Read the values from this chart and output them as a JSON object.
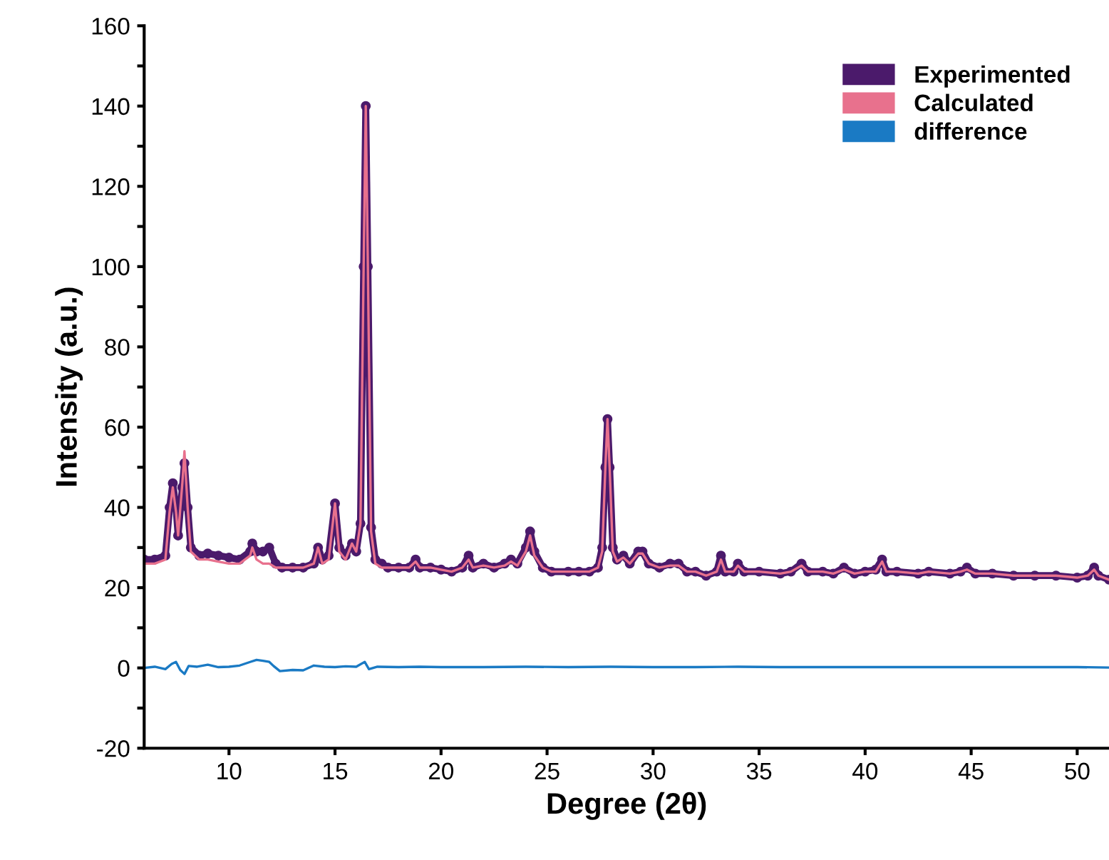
{
  "chart_data": {
    "type": "line",
    "xlabel": "Degree (2θ)",
    "ylabel": "Intensity (a.u.)",
    "xlim": [
      6,
      51.5
    ],
    "xticks": [
      10,
      15,
      20,
      25,
      30,
      35,
      40,
      45,
      50
    ],
    "ylim": [
      -20,
      160
    ],
    "yticks": [
      -20,
      {
        "value": -10,
        "label": null
      },
      0,
      {
        "value": 10,
        "label": null
      },
      20,
      {
        "value": 30,
        "label": null
      },
      40,
      {
        "value": 50,
        "label": null
      },
      60,
      {
        "value": 70,
        "label": null
      },
      80,
      {
        "value": 90,
        "label": null
      },
      100,
      {
        "value": 110,
        "label": null
      },
      120,
      {
        "value": 130,
        "label": null
      },
      140,
      {
        "value": 150,
        "label": null
      },
      160
    ],
    "grid": false,
    "legend": "top right",
    "series": [
      {
        "name": "Experimented",
        "color": "#4b1a6b",
        "marker": "circle",
        "x": [
          6.0,
          6.5,
          7.0,
          7.2,
          7.35,
          7.5,
          7.6,
          7.8,
          7.9,
          8.05,
          8.2,
          8.6,
          9.0,
          9.5,
          10.0,
          10.5,
          11.0,
          11.1,
          11.3,
          11.6,
          11.9,
          12.2,
          12.5,
          13.0,
          13.5,
          14.0,
          14.2,
          14.4,
          14.7,
          15.0,
          15.2,
          15.5,
          15.8,
          16.0,
          16.2,
          16.35,
          16.45,
          16.55,
          16.7,
          16.9,
          17.2,
          17.5,
          18.0,
          18.5,
          18.8,
          19.0,
          19.5,
          20.0,
          20.5,
          21.0,
          21.3,
          21.5,
          22.0,
          22.5,
          23.0,
          23.3,
          23.6,
          24.0,
          24.2,
          24.4,
          24.8,
          25.2,
          26.0,
          26.5,
          27.0,
          27.4,
          27.6,
          27.75,
          27.85,
          27.95,
          28.1,
          28.3,
          28.6,
          28.9,
          29.3,
          29.5,
          29.8,
          30.3,
          30.8,
          31.2,
          31.6,
          32.0,
          32.5,
          33.0,
          33.2,
          33.4,
          33.8,
          34.0,
          34.3,
          35.0,
          36.0,
          36.5,
          37.0,
          37.3,
          38.0,
          38.5,
          39.0,
          39.5,
          40.0,
          40.5,
          40.8,
          41.0,
          41.5,
          42.5,
          43.0,
          44.0,
          44.5,
          44.8,
          45.2,
          46.0,
          47.0,
          48.0,
          49.0,
          50.0,
          50.5,
          50.8,
          51.0,
          51.5
        ],
        "values": [
          27,
          27,
          28,
          40,
          46,
          40,
          33,
          45,
          51,
          40,
          30,
          28,
          28.5,
          28,
          27.5,
          27,
          29,
          31,
          29,
          29,
          30,
          26,
          25,
          25,
          25,
          26,
          30,
          27,
          28,
          41,
          30,
          28,
          31,
          29,
          36,
          100,
          140,
          100,
          35,
          27,
          26,
          25,
          25,
          25,
          27,
          25,
          25,
          24.5,
          24,
          25,
          28,
          25,
          26,
          25,
          26,
          27,
          26,
          30,
          34,
          29,
          25,
          24,
          24,
          24,
          24,
          25,
          30,
          50,
          62,
          50,
          30,
          27,
          28,
          26,
          29,
          29,
          26,
          25,
          26,
          26,
          24,
          24,
          23,
          24,
          28,
          24,
          24,
          26,
          24,
          24,
          23.5,
          24,
          26,
          24,
          24,
          23.5,
          25,
          23.5,
          24,
          24.5,
          27,
          24,
          24,
          23.5,
          24,
          23.5,
          24,
          25,
          23.5,
          23.5,
          23,
          23,
          23,
          22.5,
          23,
          25,
          23,
          22
        ]
      },
      {
        "name": "Calculated",
        "color": "#e8718d",
        "marker": "none",
        "x": [
          6.0,
          6.5,
          7.0,
          7.2,
          7.35,
          7.5,
          7.6,
          7.8,
          7.9,
          8.05,
          8.2,
          8.6,
          9.0,
          9.5,
          10.0,
          10.5,
          11.0,
          11.1,
          11.3,
          11.6,
          11.9,
          12.2,
          12.5,
          13.0,
          13.5,
          14.0,
          14.2,
          14.4,
          14.7,
          15.0,
          15.2,
          15.5,
          15.8,
          16.0,
          16.2,
          16.35,
          16.45,
          16.55,
          16.7,
          16.9,
          17.2,
          17.5,
          18.0,
          18.5,
          18.8,
          19.0,
          19.5,
          20.0,
          20.5,
          21.0,
          21.3,
          21.5,
          22.0,
          22.5,
          23.0,
          23.3,
          23.6,
          24.0,
          24.2,
          24.4,
          24.8,
          25.2,
          26.0,
          26.5,
          27.0,
          27.4,
          27.6,
          27.75,
          27.85,
          27.95,
          28.1,
          28.3,
          28.6,
          28.9,
          29.3,
          29.5,
          29.8,
          30.3,
          30.8,
          31.2,
          31.6,
          32.0,
          32.5,
          33.0,
          33.2,
          33.4,
          33.8,
          34.0,
          34.3,
          35.0,
          36.0,
          36.5,
          37.0,
          37.3,
          38.0,
          38.5,
          39.0,
          39.5,
          40.0,
          40.5,
          40.8,
          41.0,
          41.5,
          42.5,
          43.0,
          44.0,
          44.5,
          44.8,
          45.2,
          46.0,
          47.0,
          48.0,
          49.0,
          50.0,
          50.5,
          50.8,
          51.0,
          51.5
        ],
        "values": [
          26,
          26,
          27,
          39,
          45,
          39,
          33,
          46,
          54,
          40,
          29,
          27,
          27,
          26.5,
          26,
          26,
          28,
          30,
          27,
          26,
          26,
          25,
          25,
          25,
          25,
          26,
          30,
          26,
          27,
          41,
          29,
          27,
          31,
          29,
          36,
          100,
          140,
          100,
          34,
          26,
          25,
          25,
          25,
          25,
          26.5,
          25,
          25,
          24.5,
          24,
          25,
          27,
          25,
          25.5,
          25,
          25.5,
          26.5,
          25.5,
          29,
          33,
          28,
          25,
          24,
          24,
          24,
          24,
          25,
          29,
          50,
          62,
          50,
          29,
          26.5,
          27.5,
          26,
          28.5,
          28.5,
          26,
          25,
          25.5,
          25.5,
          24,
          24,
          23,
          24,
          27,
          24,
          24,
          25.5,
          24,
          24,
          23.5,
          24,
          25.5,
          24,
          24,
          23.5,
          24.5,
          23.5,
          24,
          24,
          26.5,
          24,
          24,
          23.5,
          24,
          23.5,
          24,
          24.5,
          23.5,
          23.5,
          23,
          23,
          23,
          22.5,
          23,
          24.5,
          23,
          22
        ]
      },
      {
        "name": "difference",
        "color": "#1a7ac4",
        "marker": "none",
        "x": [
          6.0,
          6.5,
          7.0,
          7.3,
          7.5,
          7.7,
          7.9,
          8.1,
          8.5,
          9.0,
          9.5,
          10.0,
          10.5,
          11.0,
          11.3,
          11.6,
          11.9,
          12.1,
          12.4,
          13.0,
          13.5,
          14.0,
          14.5,
          15.0,
          15.5,
          16.0,
          16.4,
          16.6,
          17.0,
          18.0,
          19.0,
          20.0,
          22.0,
          24.0,
          26.0,
          28.0,
          30.0,
          32.0,
          34.0,
          36.0,
          38.0,
          40.0,
          42.0,
          44.0,
          46.0,
          48.0,
          50.0,
          51.5
        ],
        "values": [
          0,
          0.3,
          -0.3,
          1,
          1.5,
          -0.5,
          -1.5,
          0.5,
          0.3,
          0.8,
          0.2,
          0.3,
          0.6,
          1.5,
          2,
          1.8,
          1.5,
          0.5,
          -0.8,
          -0.5,
          -0.6,
          0.6,
          0.3,
          0.2,
          0.4,
          0.3,
          1.5,
          -0.3,
          0.3,
          0.2,
          0.3,
          0.2,
          0.2,
          0.3,
          0.2,
          0.3,
          0.2,
          0.2,
          0.3,
          0.2,
          0.2,
          0.2,
          0.2,
          0.2,
          0.2,
          0.2,
          0.2,
          0.1
        ]
      }
    ]
  }
}
